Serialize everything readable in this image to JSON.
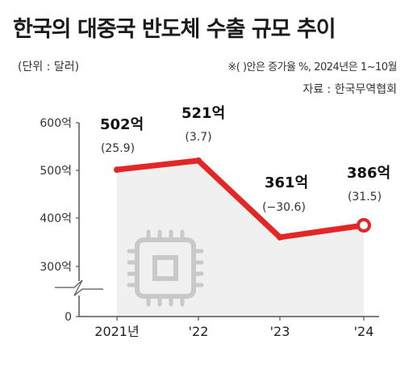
{
  "header": {
    "title": "한국의 대중국 반도체 수출 규모 추이",
    "unit": "(단위 : 달러)",
    "note": "※( )안은 증가율 %, 2024년은 1~10월",
    "source": "자료 : 한국무역협회"
  },
  "colors": {
    "line": "#e32626",
    "area": "#f0f0f0",
    "axis": "#555555",
    "icon": "#c9c9c9"
  },
  "icon": "semiconductor-chip-icon",
  "chart_data": {
    "type": "line",
    "categories": [
      "2021년",
      "'22",
      "'23",
      "'24"
    ],
    "values": [
      502,
      521,
      361,
      386
    ],
    "value_labels": [
      "502억",
      "521억",
      "361억",
      "386억"
    ],
    "growth_labels": [
      "(25.9)",
      "(3.7)",
      "(−30.6)",
      "(31.5)"
    ],
    "y_ticks": [
      "600억",
      "500억",
      "400억",
      "300억",
      "0"
    ],
    "ylim": [
      300,
      600
    ],
    "axis_break": true,
    "grid": false
  }
}
